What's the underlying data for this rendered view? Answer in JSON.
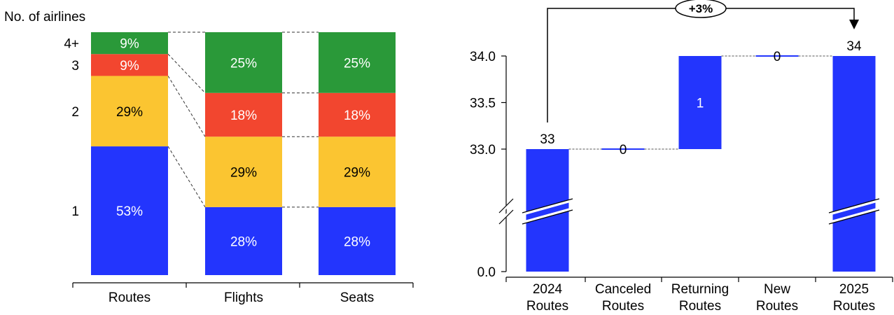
{
  "chart_data": [
    {
      "type": "bar",
      "stacked": true,
      "normalized": true,
      "ylabel": "No. of airlines",
      "categories": [
        "Routes",
        "Flights",
        "Seats"
      ],
      "series": [
        {
          "name": "1",
          "color": "#2335fd",
          "values": [
            53,
            28,
            28
          ],
          "labels": [
            "53%",
            "28%",
            "28%"
          ],
          "text_color": "#ffffff"
        },
        {
          "name": "2",
          "color": "#fbc531",
          "values": [
            29,
            29,
            29
          ],
          "labels": [
            "29%",
            "29%",
            "29%"
          ],
          "text_color": "#000000"
        },
        {
          "name": "3",
          "color": "#f2462f",
          "values": [
            9,
            18,
            18
          ],
          "labels": [
            "9%",
            "18%",
            "18%"
          ],
          "text_color": "#ffffff"
        },
        {
          "name": "4+",
          "color": "#2a9939",
          "values": [
            9,
            25,
            25
          ],
          "labels": [
            "9%",
            "25%",
            "25%"
          ],
          "text_color": "#ffffff"
        }
      ],
      "connectors": "dashed",
      "grid": false
    },
    {
      "type": "bar",
      "subtype": "waterfall",
      "color": "#2335fd",
      "categories": [
        [
          "2024",
          "Routes"
        ],
        [
          "Canceled",
          "Routes"
        ],
        [
          "Returning",
          "Routes"
        ],
        [
          "New",
          "Routes"
        ],
        [
          "2025",
          "Routes"
        ]
      ],
      "values": [
        33,
        0,
        1,
        0,
        34
      ],
      "value_labels": [
        "33",
        "0",
        "1",
        "0",
        "34"
      ],
      "kinds": [
        "total",
        "delta",
        "delta",
        "delta",
        "total"
      ],
      "yticks": [
        "0.0",
        "33.0",
        "33.5",
        "34.0"
      ],
      "ytick_values": [
        0,
        33,
        33.5,
        34
      ],
      "axis_break": true,
      "change_label": "+3%",
      "grid": false
    }
  ]
}
